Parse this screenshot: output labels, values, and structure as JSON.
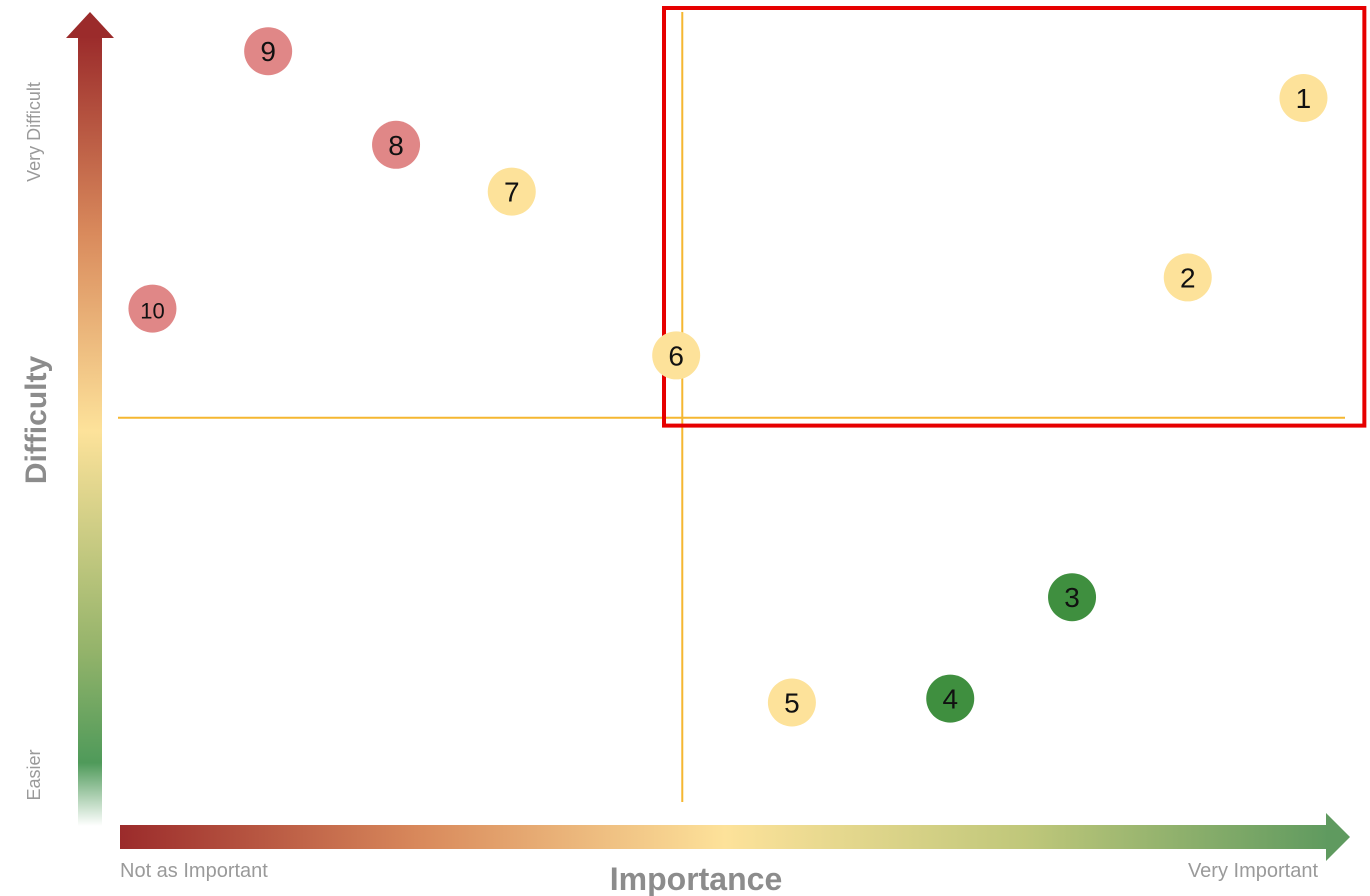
{
  "chart_data": {
    "type": "scatter",
    "xlabel": "Importance",
    "ylabel": "Difficulty",
    "x_low_label": "Not as Important",
    "x_high_label": "Very Important",
    "y_low_label": "Easier",
    "y_high_label": "Very Difficult",
    "xlim": [
      0,
      10
    ],
    "ylim": [
      0,
      10
    ],
    "divider_x": 4.6,
    "divider_y": 4.9,
    "highlight_region": {
      "x": [
        4.45,
        10.2
      ],
      "y": [
        4.8,
        10.2
      ],
      "color": "#e60000"
    },
    "divider_color": "#f5b731",
    "points": [
      {
        "label": "1",
        "x": 9.7,
        "y": 9.0,
        "color": "#fde29a"
      },
      {
        "label": "2",
        "x": 8.75,
        "y": 6.7,
        "color": "#fde29a"
      },
      {
        "label": "3",
        "x": 7.8,
        "y": 2.6,
        "color": "#3f8f3f"
      },
      {
        "label": "4",
        "x": 6.8,
        "y": 1.3,
        "color": "#3f8f3f"
      },
      {
        "label": "5",
        "x": 5.5,
        "y": 1.25,
        "color": "#fde29a"
      },
      {
        "label": "6",
        "x": 4.55,
        "y": 5.7,
        "color": "#fde29a"
      },
      {
        "label": "7",
        "x": 3.2,
        "y": 7.8,
        "color": "#fde29a"
      },
      {
        "label": "8",
        "x": 2.25,
        "y": 8.4,
        "color": "#e08787"
      },
      {
        "label": "9",
        "x": 1.2,
        "y": 9.6,
        "color": "#e08787"
      },
      {
        "label": "10",
        "x": 0.25,
        "y": 6.3,
        "color": "#e08787"
      }
    ],
    "gradient_colors": [
      "#9b2b2b",
      "#f0c070",
      "#fde29a",
      "#b9c77a",
      "#4f9a5a"
    ]
  }
}
